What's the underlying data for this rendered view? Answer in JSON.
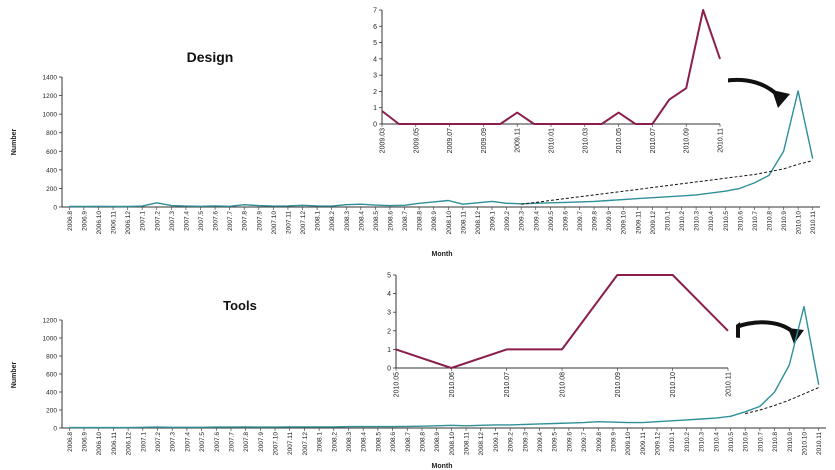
{
  "colors": {
    "main_line": "#2f8f99",
    "trend_line": "#111111",
    "inset_line": "#8a1f4e",
    "axis": "#333333",
    "arrow": "#111111"
  },
  "chart_data": [
    {
      "id": "design-main",
      "type": "line",
      "title": "Design",
      "xlabel": "Month",
      "ylabel": "Number",
      "ylim": [
        0,
        1400
      ],
      "yticks": [
        0,
        200,
        400,
        600,
        800,
        1000,
        1200,
        1400
      ],
      "categories": [
        "2006.8",
        "2006.9",
        "2006.10",
        "2006.11",
        "2006.12",
        "2007.1",
        "2007.2",
        "2007.3",
        "2007.4",
        "2007.5",
        "2007.6",
        "2007.7",
        "2007.8",
        "2007.9",
        "2007.10",
        "2007.11",
        "2007.12",
        "2008.1",
        "2008.2",
        "2008.3",
        "2008.4",
        "2008.5",
        "2008.6",
        "2008.7",
        "2008.8",
        "2008.9",
        "2008.10",
        "2008.11",
        "2008.12",
        "2009.1",
        "2009.2",
        "2009.3",
        "2009.4",
        "2009.5",
        "2009.6",
        "2009.7",
        "2009.8",
        "2009.9",
        "2009.10",
        "2009.11",
        "2009.12",
        "2010.1",
        "2010.2",
        "2010.3",
        "2010.4",
        "2010.5",
        "2010.6",
        "2010.7",
        "2010.8",
        "2010.9",
        "2010.10",
        "2010.11"
      ],
      "series": [
        {
          "values": [
            5,
            5,
            8,
            6,
            5,
            10,
            45,
            15,
            10,
            8,
            12,
            8,
            25,
            15,
            10,
            12,
            18,
            12,
            10,
            25,
            30,
            20,
            15,
            18,
            40,
            55,
            70,
            30,
            45,
            60,
            40,
            35,
            40,
            45,
            50,
            55,
            60,
            70,
            80,
            90,
            100,
            110,
            120,
            130,
            150,
            170,
            200,
            260,
            340,
            600,
            1250,
            520
          ]
        },
        {
          "values": [
            null,
            null,
            null,
            null,
            null,
            null,
            null,
            null,
            null,
            null,
            null,
            null,
            null,
            null,
            null,
            null,
            null,
            null,
            null,
            null,
            null,
            null,
            null,
            null,
            null,
            null,
            null,
            null,
            null,
            null,
            null,
            30,
            50,
            70,
            90,
            110,
            130,
            150,
            170,
            190,
            210,
            230,
            250,
            270,
            290,
            310,
            330,
            350,
            380,
            410,
            460,
            500
          ]
        }
      ]
    },
    {
      "id": "design-inset",
      "type": "line",
      "ylim": [
        0,
        7
      ],
      "yticks": [
        0,
        1,
        2,
        3,
        4,
        5,
        6,
        7
      ],
      "categories": [
        "2009.03",
        "2009.04",
        "2009.05",
        "2009.06",
        "2009.07",
        "2009.08",
        "2009.09",
        "2009.10",
        "2009.11",
        "2009.12",
        "2010.01",
        "2010.02",
        "2010.03",
        "2010.04",
        "2010.05",
        "2010.06",
        "2010.07",
        "2010.08",
        "2010.09",
        "2010.10",
        "2010.11"
      ],
      "xticks": [
        "2009.03",
        "2009.05",
        "2009.07",
        "2009.09",
        "2009.11",
        "2010.01",
        "2010.03",
        "2010.05",
        "2010.07",
        "2010.09",
        "2010.11"
      ],
      "series": [
        {
          "values": [
            0.8,
            0,
            0,
            0,
            0,
            0,
            0,
            0,
            0.7,
            0,
            0,
            0,
            0,
            0,
            0.7,
            0,
            0,
            1.5,
            2.2,
            7,
            4
          ]
        }
      ]
    },
    {
      "id": "tools-main",
      "type": "line",
      "title": "Tools",
      "xlabel": "Month",
      "ylabel": "Number",
      "ylim": [
        0,
        1200
      ],
      "yticks": [
        0,
        200,
        400,
        600,
        800,
        1000,
        1200
      ],
      "categories": [
        "2006.8",
        "2006.9",
        "2006.10",
        "2006.11",
        "2006.12",
        "2007.1",
        "2007.2",
        "2007.3",
        "2007.4",
        "2007.5",
        "2007.6",
        "2007.7",
        "2007.8",
        "2007.9",
        "2007.10",
        "2007.11",
        "2007.12",
        "2008.1",
        "2008.2",
        "2008.3",
        "2008.4",
        "2008.5",
        "2008.6",
        "2008.7",
        "2008.8",
        "2008.9",
        "2008.10",
        "2008.11",
        "2008.12",
        "2009.1",
        "2009.2",
        "2009.3",
        "2009.4",
        "2009.5",
        "2009.6",
        "2009.7",
        "2009.8",
        "2009.9",
        "2009.10",
        "2009.11",
        "2009.12",
        "2010.1",
        "2010.2",
        "2010.3",
        "2010.4",
        "2010.5",
        "2010.6",
        "2010.7",
        "2010.8",
        "2010.9",
        "2010.10",
        "2010.11"
      ],
      "series": [
        {
          "values": [
            5,
            5,
            5,
            5,
            5,
            8,
            10,
            8,
            8,
            8,
            10,
            10,
            12,
            10,
            10,
            12,
            12,
            12,
            12,
            15,
            15,
            15,
            15,
            18,
            20,
            25,
            30,
            25,
            30,
            35,
            35,
            40,
            45,
            50,
            55,
            60,
            70,
            65,
            60,
            60,
            70,
            80,
            90,
            100,
            110,
            130,
            180,
            240,
            400,
            700,
            1350,
            480
          ]
        },
        {
          "values": [
            null,
            null,
            null,
            null,
            null,
            null,
            null,
            null,
            null,
            null,
            null,
            null,
            null,
            null,
            null,
            null,
            null,
            null,
            null,
            null,
            null,
            null,
            null,
            null,
            null,
            null,
            null,
            null,
            null,
            null,
            null,
            null,
            null,
            null,
            null,
            null,
            null,
            null,
            null,
            null,
            null,
            null,
            null,
            null,
            null,
            null,
            160,
            200,
            250,
            310,
            380,
            450
          ]
        }
      ]
    },
    {
      "id": "tools-inset",
      "type": "line",
      "ylim": [
        0,
        5
      ],
      "yticks": [
        0,
        1,
        2,
        3,
        4,
        5
      ],
      "categories": [
        "2010.05",
        "2010.06",
        "2010.07",
        "2010.08",
        "2010.09",
        "2010.10",
        "2010.11"
      ],
      "xticks": [
        "2010.05",
        "2010.06",
        "2010.07",
        "2010.08",
        "2010.09",
        "2010.10",
        "2010.11"
      ],
      "series": [
        {
          "values": [
            1,
            0,
            1,
            1,
            5,
            5,
            2
          ]
        }
      ]
    }
  ]
}
